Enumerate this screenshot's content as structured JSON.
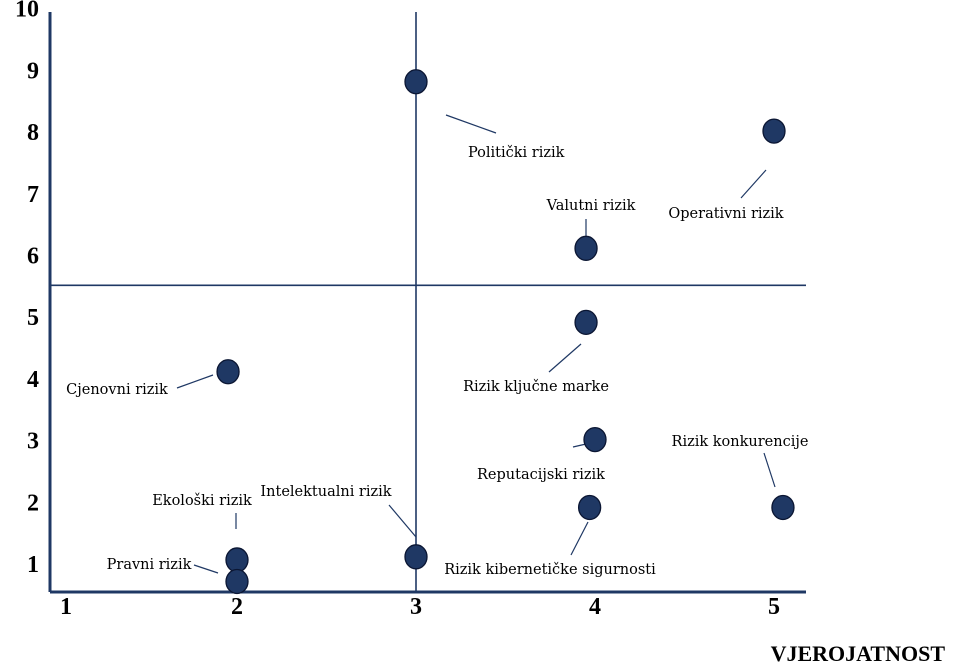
{
  "chart_data": {
    "type": "scatter",
    "x_title": "VJEROJATNOST",
    "xlim": [
      1,
      5
    ],
    "ylim": [
      0.5,
      10
    ],
    "x_ticks": [
      1,
      2,
      3,
      4,
      5
    ],
    "y_ticks": [
      1,
      2,
      3,
      4,
      5,
      6,
      7,
      8,
      9,
      10
    ],
    "dividers": {
      "x": 3,
      "y": 5.5
    },
    "grid": false,
    "point_color": "#1f3864",
    "points": [
      {
        "label": "Politički rizik",
        "x": 3.0,
        "y": 8.8
      },
      {
        "label": "Operativni rizik",
        "x": 5.0,
        "y": 8.0
      },
      {
        "label": "Valutni rizik",
        "x": 3.95,
        "y": 6.1
      },
      {
        "label": "Rizik ključne marke",
        "x": 3.95,
        "y": 4.9
      },
      {
        "label": "Cjenovni rizik",
        "x": 1.95,
        "y": 4.1
      },
      {
        "label": "Reputacijski rizik",
        "x": 4.0,
        "y": 3.0
      },
      {
        "label": "Rizik konkurencije",
        "x": 5.05,
        "y": 1.9
      },
      {
        "label": "Rizik kibernetičke sigurnosti",
        "x": 3.97,
        "y": 1.9
      },
      {
        "label": "Intelektualni rizik",
        "x": 3.0,
        "y": 1.1
      },
      {
        "label": "Ekološki rizik",
        "x": 2.0,
        "y": 1.05
      },
      {
        "label": "Pravni rizik",
        "x": 2.0,
        "y": 0.7
      }
    ]
  }
}
